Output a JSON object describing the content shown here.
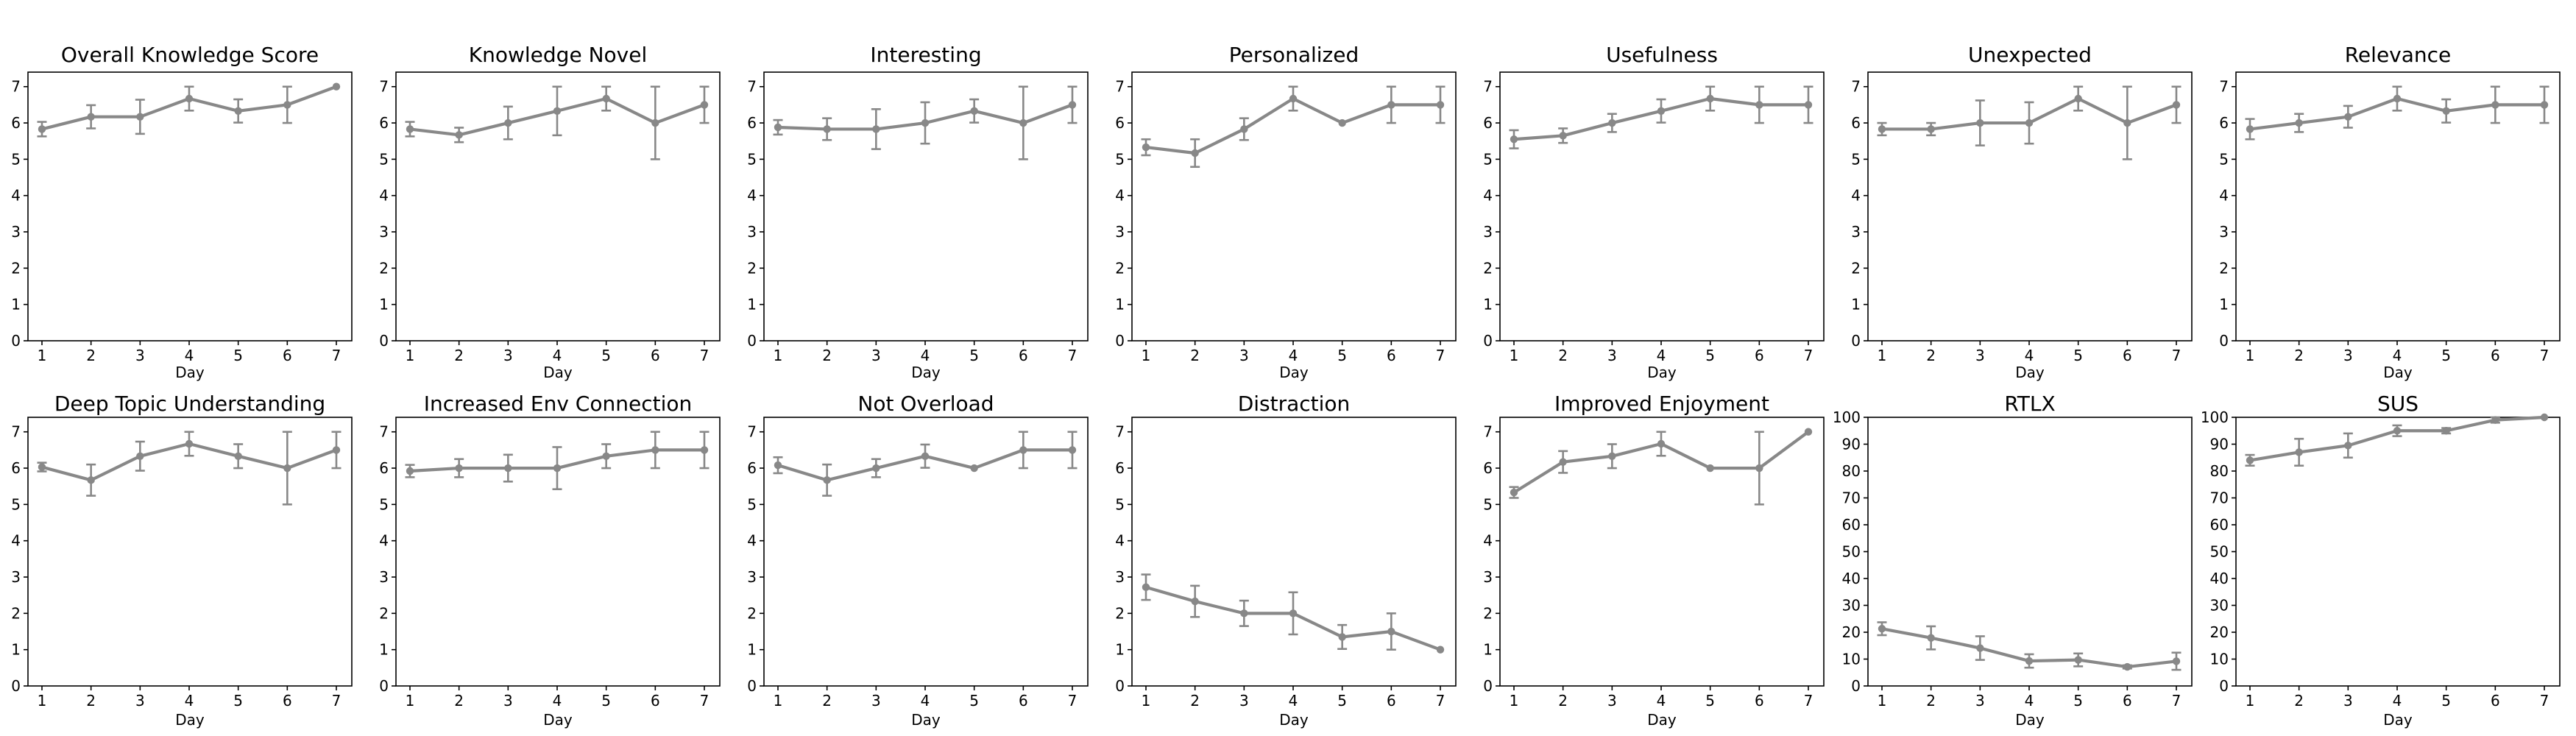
{
  "figure": {
    "background_color": "#ffffff",
    "rows": 2,
    "cols": 7,
    "x_axis_label": "Day",
    "x_days": [
      1,
      2,
      3,
      4,
      5,
      6,
      7
    ]
  },
  "style": {
    "line_color": "#888888",
    "axis_color": "#000000",
    "text_color": "#000000",
    "title_font_size": 28,
    "tick_font_size": 20,
    "label_font_size": 20
  },
  "chart_data": [
    {
      "type": "line",
      "title": "Overall Knowledge Score",
      "xlabel": "Day",
      "x": [
        1,
        2,
        3,
        4,
        5,
        6,
        7
      ],
      "values": [
        5.83,
        6.17,
        6.17,
        6.67,
        6.33,
        6.5,
        7.0
      ],
      "errors": [
        0.2,
        0.32,
        0.47,
        0.33,
        0.32,
        0.5,
        0
      ],
      "ylim": [
        0,
        7.4
      ],
      "yticks": [
        0,
        1,
        2,
        3,
        4,
        5,
        6,
        7
      ]
    },
    {
      "type": "line",
      "title": "Knowledge Novel",
      "xlabel": "Day",
      "x": [
        1,
        2,
        3,
        4,
        5,
        6,
        7
      ],
      "values": [
        5.83,
        5.67,
        6.0,
        6.33,
        6.67,
        6.0,
        6.5
      ],
      "errors": [
        0.2,
        0.2,
        0.45,
        0.67,
        0.33,
        1.0,
        0.5
      ],
      "ylim": [
        0,
        7.4
      ],
      "yticks": [
        0,
        1,
        2,
        3,
        4,
        5,
        6,
        7
      ]
    },
    {
      "type": "line",
      "title": "Interesting",
      "xlabel": "Day",
      "x": [
        1,
        2,
        3,
        4,
        5,
        6,
        7
      ],
      "values": [
        5.88,
        5.83,
        5.83,
        6.0,
        6.33,
        6.0,
        6.5
      ],
      "errors": [
        0.2,
        0.3,
        0.55,
        0.57,
        0.32,
        1.0,
        0.5
      ],
      "ylim": [
        0,
        7.4
      ],
      "yticks": [
        0,
        1,
        2,
        3,
        4,
        5,
        6,
        7
      ]
    },
    {
      "type": "line",
      "title": "Personalized",
      "xlabel": "Day",
      "x": [
        1,
        2,
        3,
        4,
        5,
        6,
        7
      ],
      "values": [
        5.33,
        5.17,
        5.83,
        6.67,
        6.0,
        6.5,
        6.5
      ],
      "errors": [
        0.22,
        0.38,
        0.3,
        0.33,
        0,
        0.5,
        0.5
      ],
      "ylim": [
        0,
        7.4
      ],
      "yticks": [
        0,
        1,
        2,
        3,
        4,
        5,
        6,
        7
      ]
    },
    {
      "type": "line",
      "title": "Usefulness",
      "xlabel": "Day",
      "x": [
        1,
        2,
        3,
        4,
        5,
        6,
        7
      ],
      "values": [
        5.55,
        5.65,
        6.0,
        6.33,
        6.67,
        6.5,
        6.5
      ],
      "errors": [
        0.25,
        0.2,
        0.25,
        0.32,
        0.33,
        0.5,
        0.5
      ],
      "ylim": [
        0,
        7.4
      ],
      "yticks": [
        0,
        1,
        2,
        3,
        4,
        5,
        6,
        7
      ]
    },
    {
      "type": "line",
      "title": "Unexpected",
      "xlabel": "Day",
      "x": [
        1,
        2,
        3,
        4,
        5,
        6,
        7
      ],
      "values": [
        5.83,
        5.83,
        6.0,
        6.0,
        6.67,
        6.0,
        6.5
      ],
      "errors": [
        0.17,
        0.17,
        0.62,
        0.57,
        0.33,
        1.0,
        0.5
      ],
      "ylim": [
        0,
        7.4
      ],
      "yticks": [
        0,
        1,
        2,
        3,
        4,
        5,
        6,
        7
      ]
    },
    {
      "type": "line",
      "title": "Relevance",
      "xlabel": "Day",
      "x": [
        1,
        2,
        3,
        4,
        5,
        6,
        7
      ],
      "values": [
        5.83,
        6.0,
        6.17,
        6.67,
        6.33,
        6.5,
        6.5
      ],
      "errors": [
        0.28,
        0.25,
        0.3,
        0.33,
        0.32,
        0.5,
        0.5
      ],
      "ylim": [
        0,
        7.4
      ],
      "yticks": [
        0,
        1,
        2,
        3,
        4,
        5,
        6,
        7
      ]
    },
    {
      "type": "line",
      "title": "Deep Topic Understanding",
      "xlabel": "Day",
      "x": [
        1,
        2,
        3,
        4,
        5,
        6,
        7
      ],
      "values": [
        6.03,
        5.67,
        6.33,
        6.67,
        6.33,
        6.0,
        6.5
      ],
      "errors": [
        0.12,
        0.43,
        0.4,
        0.33,
        0.33,
        1.0,
        0.5
      ],
      "ylim": [
        0,
        7.4
      ],
      "yticks": [
        0,
        1,
        2,
        3,
        4,
        5,
        6,
        7
      ]
    },
    {
      "type": "line",
      "title": "Increased Env Connection",
      "xlabel": "Day",
      "x": [
        1,
        2,
        3,
        4,
        5,
        6,
        7
      ],
      "values": [
        5.92,
        6.0,
        6.0,
        6.0,
        6.33,
        6.5,
        6.5
      ],
      "errors": [
        0.17,
        0.25,
        0.37,
        0.58,
        0.33,
        0.5,
        0.5
      ],
      "ylim": [
        0,
        7.4
      ],
      "yticks": [
        0,
        1,
        2,
        3,
        4,
        5,
        6,
        7
      ]
    },
    {
      "type": "line",
      "title": "Not Overload",
      "xlabel": "Day",
      "x": [
        1,
        2,
        3,
        4,
        5,
        6,
        7
      ],
      "values": [
        6.08,
        5.67,
        6.0,
        6.33,
        6.0,
        6.5,
        6.5
      ],
      "errors": [
        0.22,
        0.43,
        0.25,
        0.32,
        0,
        0.5,
        0.5
      ],
      "ylim": [
        0,
        7.4
      ],
      "yticks": [
        0,
        1,
        2,
        3,
        4,
        5,
        6,
        7
      ]
    },
    {
      "type": "line",
      "title": "Distraction",
      "xlabel": "Day",
      "x": [
        1,
        2,
        3,
        4,
        5,
        6,
        7
      ],
      "values": [
        2.72,
        2.33,
        2.0,
        2.0,
        1.35,
        1.5,
        1.0
      ],
      "errors": [
        0.35,
        0.43,
        0.35,
        0.58,
        0.33,
        0.5,
        0
      ],
      "ylim": [
        0,
        7.4
      ],
      "yticks": [
        0,
        1,
        2,
        3,
        4,
        5,
        6,
        7
      ]
    },
    {
      "type": "line",
      "title": "Improved Enjoyment",
      "xlabel": "Day",
      "x": [
        1,
        2,
        3,
        4,
        5,
        6,
        7
      ],
      "values": [
        5.33,
        6.17,
        6.33,
        6.67,
        6.0,
        6.0,
        7.0
      ],
      "errors": [
        0.15,
        0.3,
        0.33,
        0.33,
        0,
        1.0,
        0
      ],
      "ylim": [
        0,
        7.4
      ],
      "yticks": [
        0,
        1,
        2,
        3,
        4,
        5,
        6,
        7
      ]
    },
    {
      "type": "line",
      "title": "RTLX",
      "xlabel": "Day",
      "x": [
        1,
        2,
        3,
        4,
        5,
        6,
        7
      ],
      "values": [
        21.3,
        17.9,
        14.1,
        9.3,
        9.7,
        7.1,
        9.2
      ],
      "errors": [
        2.4,
        4.3,
        4.4,
        2.5,
        2.4,
        0.6,
        3.2
      ],
      "ylim": [
        0,
        100
      ],
      "yticks": [
        0,
        10,
        20,
        30,
        40,
        50,
        60,
        70,
        80,
        90,
        100
      ]
    },
    {
      "type": "line",
      "title": "SUS",
      "xlabel": "Day",
      "x": [
        1,
        2,
        3,
        4,
        5,
        6,
        7
      ],
      "values": [
        84,
        87,
        89.5,
        95,
        95,
        99,
        100
      ],
      "errors": [
        2,
        5,
        4.5,
        2,
        1,
        1,
        0
      ],
      "ylim": [
        0,
        100
      ],
      "yticks": [
        0,
        10,
        20,
        30,
        40,
        50,
        60,
        70,
        80,
        90,
        100
      ]
    }
  ]
}
